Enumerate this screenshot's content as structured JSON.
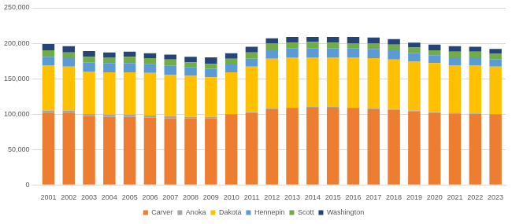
{
  "chart_data": {
    "type": "bar",
    "stacked": true,
    "grid": true,
    "legend": "bottom",
    "categories": [
      "2001",
      "2002",
      "2003",
      "2004",
      "2005",
      "2006",
      "2007",
      "2008",
      "2009",
      "2010",
      "2011",
      "2012",
      "2013",
      "2014",
      "2015",
      "2016",
      "2017",
      "2018",
      "2019",
      "2020",
      "2021",
      "2022",
      "2023"
    ],
    "series": [
      {
        "name": "Carver",
        "color": "#ED7D31",
        "values": [
          102000,
          102000,
          97000,
          96000,
          96000,
          95000,
          94000,
          94000,
          94000,
          99000,
          102000,
          107000,
          108000,
          109000,
          109000,
          108000,
          107000,
          106000,
          104000,
          102000,
          101000,
          100000,
          99000
        ]
      },
      {
        "name": "Anoka",
        "color": "#A5A5A5",
        "values": [
          3000,
          3000,
          3000,
          3000,
          3000,
          3000,
          3000,
          2000,
          2000,
          1000,
          1000,
          1000,
          1000,
          1000,
          1000,
          1000,
          1000,
          1000,
          1000,
          1000,
          1000,
          1000,
          1000
        ]
      },
      {
        "name": "Dakota",
        "color": "#FFC000",
        "values": [
          64000,
          62000,
          60000,
          60000,
          60000,
          60000,
          58000,
          58000,
          56000,
          59000,
          64000,
          70000,
          71000,
          70000,
          70000,
          71000,
          71000,
          70000,
          69000,
          69000,
          67000,
          68000,
          67000
        ]
      },
      {
        "name": "Hennepin",
        "color": "#5B9BD5",
        "values": [
          12000,
          12000,
          13000,
          13000,
          13000,
          13000,
          13000,
          12000,
          12000,
          11000,
          11000,
          12000,
          13000,
          13000,
          13000,
          13000,
          13000,
          13000,
          12000,
          11000,
          11000,
          11000,
          10000
        ]
      },
      {
        "name": "Scott",
        "color": "#70AD47",
        "values": [
          9000,
          8000,
          8000,
          8000,
          9000,
          8000,
          9000,
          7000,
          7000,
          8000,
          9000,
          10000,
          8000,
          9000,
          8000,
          7000,
          8000,
          8000,
          8000,
          7000,
          8000,
          8000,
          8000
        ]
      },
      {
        "name": "Washington",
        "color": "#264478",
        "values": [
          9000,
          9000,
          8000,
          7000,
          7000,
          7000,
          7000,
          8000,
          9000,
          8000,
          8000,
          7000,
          8000,
          7000,
          8000,
          9000,
          8000,
          8000,
          7000,
          8000,
          8000,
          7000,
          7000
        ]
      }
    ],
    "ylim": [
      0,
      250000
    ],
    "yticks": [
      0,
      {
        "value": 50000,
        "label": "50,000"
      },
      {
        "value": 100000,
        "label": "100,000"
      },
      {
        "value": 150000,
        "label": "150,000"
      },
      {
        "value": 200000,
        "label": "200,000"
      },
      {
        "value": 250000,
        "label": "250,000"
      }
    ]
  }
}
